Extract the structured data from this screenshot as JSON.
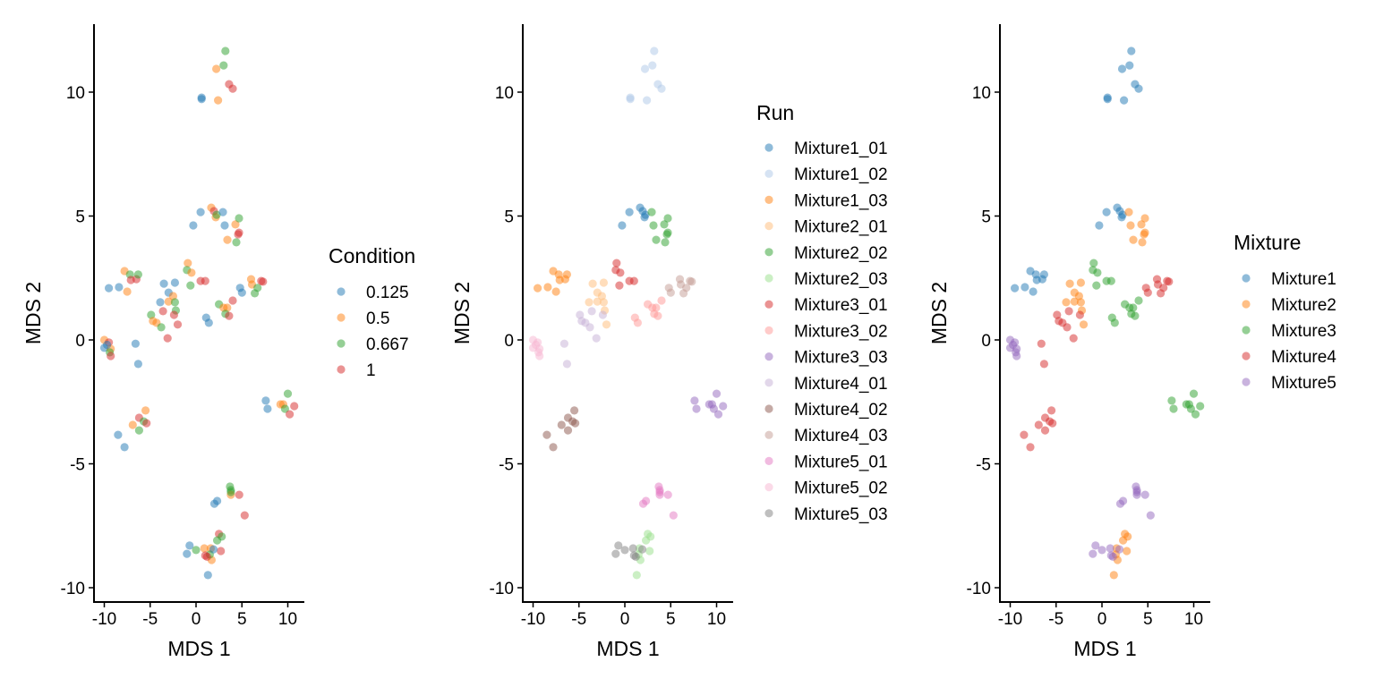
{
  "chart_data": [
    {
      "type": "scatter",
      "title": "",
      "xlabel": "MDS 1",
      "ylabel": "MDS 2",
      "xlim": [
        -11.2,
        11.8
      ],
      "ylim": [
        -10.6,
        12.75
      ],
      "xticks": [
        -10,
        -5,
        0,
        5,
        10
      ],
      "yticks": [
        -10,
        -5,
        0,
        5,
        10
      ],
      "grid": false,
      "color_by": "condition",
      "legend": {
        "title": "Condition",
        "position": "right",
        "entries": [
          {
            "label": "0.125",
            "key": "0.125",
            "color": "#1F77B4"
          },
          {
            "label": "0.5",
            "key": "0.5",
            "color": "#FF7F0E"
          },
          {
            "label": "0.667",
            "key": "0.667",
            "color": "#2CA02C"
          },
          {
            "label": "1",
            "key": "1",
            "color": "#D62728"
          }
        ]
      }
    },
    {
      "type": "scatter",
      "title": "",
      "xlabel": "MDS 1",
      "ylabel": "MDS 2",
      "xlim": [
        -11.2,
        11.8
      ],
      "ylim": [
        -10.6,
        12.75
      ],
      "xticks": [
        -10,
        -5,
        0,
        5,
        10
      ],
      "yticks": [
        -10,
        -5,
        0,
        5,
        10
      ],
      "grid": false,
      "color_by": "run",
      "legend": {
        "title": "Run",
        "position": "right",
        "entries": [
          {
            "label": "Mixture1_01",
            "key": "Mixture1_01",
            "color": "#1F77B4"
          },
          {
            "label": "Mixture1_02",
            "key": "Mixture1_02",
            "color": "#AEC7E8"
          },
          {
            "label": "Mixture1_03",
            "key": "Mixture1_03",
            "color": "#FF7F0E"
          },
          {
            "label": "Mixture2_01",
            "key": "Mixture2_01",
            "color": "#FFBB78"
          },
          {
            "label": "Mixture2_02",
            "key": "Mixture2_02",
            "color": "#2CA02C"
          },
          {
            "label": "Mixture2_03",
            "key": "Mixture2_03",
            "color": "#98DF8A"
          },
          {
            "label": "Mixture3_01",
            "key": "Mixture3_01",
            "color": "#D62728"
          },
          {
            "label": "Mixture3_02",
            "key": "Mixture3_02",
            "color": "#FF9896"
          },
          {
            "label": "Mixture3_03",
            "key": "Mixture3_03",
            "color": "#9467BD"
          },
          {
            "label": "Mixture4_01",
            "key": "Mixture4_01",
            "color": "#C5B0D5"
          },
          {
            "label": "Mixture4_02",
            "key": "Mixture4_02",
            "color": "#8C564B"
          },
          {
            "label": "Mixture4_03",
            "key": "Mixture4_03",
            "color": "#C49C94"
          },
          {
            "label": "Mixture5_01",
            "key": "Mixture5_01",
            "color": "#E377C2"
          },
          {
            "label": "Mixture5_02",
            "key": "Mixture5_02",
            "color": "#F7B6D2"
          },
          {
            "label": "Mixture5_03",
            "key": "Mixture5_03",
            "color": "#7F7F7F"
          }
        ]
      }
    },
    {
      "type": "scatter",
      "title": "",
      "xlabel": "MDS 1",
      "ylabel": "MDS 2",
      "xlim": [
        -11.2,
        11.8
      ],
      "ylim": [
        -10.6,
        12.75
      ],
      "xticks": [
        -10,
        -5,
        0,
        5,
        10
      ],
      "yticks": [
        -10,
        -5,
        0,
        5,
        10
      ],
      "grid": false,
      "color_by": "mixture",
      "legend": {
        "title": "Mixture",
        "position": "right",
        "entries": [
          {
            "label": "Mixture1",
            "key": "Mixture1",
            "color": "#1F77B4"
          },
          {
            "label": "Mixture2",
            "key": "Mixture2",
            "color": "#FF7F0E"
          },
          {
            "label": "Mixture3",
            "key": "Mixture3",
            "color": "#2CA02C"
          },
          {
            "label": "Mixture4",
            "key": "Mixture4",
            "color": "#D62728"
          },
          {
            "label": "Mixture5",
            "key": "Mixture5",
            "color": "#9467BD"
          }
        ]
      }
    }
  ],
  "points": [
    {
      "x": 3.2,
      "y": 11.66,
      "condition": "0.667",
      "run": "Mixture1_02",
      "mixture": "Mixture1"
    },
    {
      "x": 3.0,
      "y": 11.08,
      "condition": "0.667",
      "run": "Mixture1_02",
      "mixture": "Mixture1"
    },
    {
      "x": 2.2,
      "y": 10.94,
      "condition": "0.5",
      "run": "Mixture1_02",
      "mixture": "Mixture1"
    },
    {
      "x": 3.6,
      "y": 10.32,
      "condition": "1",
      "run": "Mixture1_02",
      "mixture": "Mixture1"
    },
    {
      "x": 4.0,
      "y": 10.14,
      "condition": "1",
      "run": "Mixture1_02",
      "mixture": "Mixture1"
    },
    {
      "x": 0.6,
      "y": 9.78,
      "condition": "0.125",
      "run": "Mixture1_02",
      "mixture": "Mixture1"
    },
    {
      "x": 0.6,
      "y": 9.72,
      "condition": "0.125",
      "run": "Mixture1_02",
      "mixture": "Mixture1"
    },
    {
      "x": 2.4,
      "y": 9.67,
      "condition": "0.5",
      "run": "Mixture1_02",
      "mixture": "Mixture1"
    },
    {
      "x": 0.5,
      "y": 5.16,
      "condition": "0.125",
      "run": "Mixture1_01",
      "mixture": "Mixture1"
    },
    {
      "x": -0.3,
      "y": 4.62,
      "condition": "0.125",
      "run": "Mixture1_01",
      "mixture": "Mixture1"
    },
    {
      "x": 1.66,
      "y": 5.34,
      "condition": "0.5",
      "run": "Mixture1_01",
      "mixture": "Mixture1"
    },
    {
      "x": 1.95,
      "y": 5.2,
      "condition": "1",
      "run": "Mixture1_01",
      "mixture": "Mixture1"
    },
    {
      "x": 2.15,
      "y": 4.95,
      "condition": "0.5",
      "run": "Mixture1_01",
      "mixture": "Mixture1"
    },
    {
      "x": 2.24,
      "y": 5.05,
      "condition": "0.667",
      "run": "Mixture1_01",
      "mixture": "Mixture1"
    },
    {
      "x": 2.93,
      "y": 5.16,
      "condition": "0.125",
      "run": "Mixture2_02",
      "mixture": "Mixture2"
    },
    {
      "x": 3.12,
      "y": 4.62,
      "condition": "0.125",
      "run": "Mixture2_02",
      "mixture": "Mixture2"
    },
    {
      "x": 4.29,
      "y": 4.66,
      "condition": "0.5",
      "run": "Mixture2_02",
      "mixture": "Mixture2"
    },
    {
      "x": 4.68,
      "y": 4.91,
      "condition": "0.667",
      "run": "Mixture2_02",
      "mixture": "Mixture2"
    },
    {
      "x": 4.68,
      "y": 4.33,
      "condition": "1",
      "run": "Mixture2_02",
      "mixture": "Mixture2"
    },
    {
      "x": 4.59,
      "y": 4.26,
      "condition": "1",
      "run": "Mixture2_02",
      "mixture": "Mixture2"
    },
    {
      "x": 3.41,
      "y": 4.04,
      "condition": "0.5",
      "run": "Mixture2_02",
      "mixture": "Mixture2"
    },
    {
      "x": 4.39,
      "y": 3.94,
      "condition": "0.667",
      "run": "Mixture2_02",
      "mixture": "Mixture2"
    },
    {
      "x": -7.8,
      "y": 2.78,
      "condition": "0.5",
      "run": "Mixture1_03",
      "mixture": "Mixture1"
    },
    {
      "x": -7.2,
      "y": 2.64,
      "condition": "0.667",
      "run": "Mixture1_03",
      "mixture": "Mixture1"
    },
    {
      "x": -7.1,
      "y": 2.42,
      "condition": "1",
      "run": "Mixture1_03",
      "mixture": "Mixture1"
    },
    {
      "x": -6.5,
      "y": 2.45,
      "condition": "1",
      "run": "Mixture1_03",
      "mixture": "Mixture1"
    },
    {
      "x": -6.3,
      "y": 2.64,
      "condition": "0.667",
      "run": "Mixture1_03",
      "mixture": "Mixture1"
    },
    {
      "x": -9.5,
      "y": 2.09,
      "condition": "0.125",
      "run": "Mixture1_03",
      "mixture": "Mixture1"
    },
    {
      "x": -8.4,
      "y": 2.13,
      "condition": "0.125",
      "run": "Mixture1_03",
      "mixture": "Mixture1"
    },
    {
      "x": -7.5,
      "y": 1.95,
      "condition": "0.5",
      "run": "Mixture1_03",
      "mixture": "Mixture1"
    },
    {
      "x": -3.5,
      "y": 2.27,
      "condition": "0.125",
      "run": "Mixture2_01",
      "mixture": "Mixture2"
    },
    {
      "x": -2.3,
      "y": 2.31,
      "condition": "0.125",
      "run": "Mixture2_01",
      "mixture": "Mixture2"
    },
    {
      "x": -3.0,
      "y": 1.91,
      "condition": "0.125",
      "run": "Mixture2_01",
      "mixture": "Mixture2"
    },
    {
      "x": -3.9,
      "y": 1.52,
      "condition": "0.125",
      "run": "Mixture2_01",
      "mixture": "Mixture2"
    },
    {
      "x": -3.0,
      "y": 1.55,
      "condition": "0.5",
      "run": "Mixture2_01",
      "mixture": "Mixture2"
    },
    {
      "x": -2.5,
      "y": 1.77,
      "condition": "0.5",
      "run": "Mixture2_01",
      "mixture": "Mixture2"
    },
    {
      "x": -2.3,
      "y": 1.52,
      "condition": "0.667",
      "run": "Mixture2_01",
      "mixture": "Mixture2"
    },
    {
      "x": -2.2,
      "y": 1.19,
      "condition": "0.667",
      "run": "Mixture2_01",
      "mixture": "Mixture2"
    },
    {
      "x": -2.0,
      "y": 0.62,
      "condition": "1",
      "run": "Mixture2_01",
      "mixture": "Mixture2"
    },
    {
      "x": -3.6,
      "y": 1.16,
      "condition": "1",
      "run": "Mixture4_01",
      "mixture": "Mixture4"
    },
    {
      "x": -2.4,
      "y": 1.01,
      "condition": "1",
      "run": "Mixture4_01",
      "mixture": "Mixture4"
    },
    {
      "x": -4.9,
      "y": 1.01,
      "condition": "0.667",
      "run": "Mixture4_01",
      "mixture": "Mixture4"
    },
    {
      "x": -4.7,
      "y": 0.76,
      "condition": "0.5",
      "run": "Mixture4_01",
      "mixture": "Mixture4"
    },
    {
      "x": -4.3,
      "y": 0.69,
      "condition": "0.5",
      "run": "Mixture4_01",
      "mixture": "Mixture4"
    },
    {
      "x": -3.8,
      "y": 0.51,
      "condition": "0.667",
      "run": "Mixture4_01",
      "mixture": "Mixture4"
    },
    {
      "x": -3.1,
      "y": 0.07,
      "condition": "1",
      "run": "Mixture4_01",
      "mixture": "Mixture4"
    },
    {
      "x": -6.6,
      "y": -0.15,
      "condition": "0.125",
      "run": "Mixture4_01",
      "mixture": "Mixture4"
    },
    {
      "x": -6.3,
      "y": -0.97,
      "condition": "0.125",
      "run": "Mixture4_01",
      "mixture": "Mixture4"
    },
    {
      "x": -10.0,
      "y": 0.0,
      "condition": "0.5",
      "run": "Mixture5_02",
      "mixture": "Mixture5"
    },
    {
      "x": -9.5,
      "y": -0.1,
      "condition": "1",
      "run": "Mixture5_02",
      "mixture": "Mixture5"
    },
    {
      "x": -10.0,
      "y": -0.32,
      "condition": "0.125",
      "run": "Mixture5_02",
      "mixture": "Mixture5"
    },
    {
      "x": -9.3,
      "y": -0.36,
      "condition": "0.5",
      "run": "Mixture5_02",
      "mixture": "Mixture5"
    },
    {
      "x": -9.4,
      "y": -0.5,
      "condition": "0.667",
      "run": "Mixture5_02",
      "mixture": "Mixture5"
    },
    {
      "x": -9.3,
      "y": -0.65,
      "condition": "1",
      "run": "Mixture5_02",
      "mixture": "Mixture5"
    },
    {
      "x": -9.7,
      "y": -0.2,
      "condition": "0.125",
      "run": "Mixture5_02",
      "mixture": "Mixture5"
    },
    {
      "x": -0.9,
      "y": 3.1,
      "condition": "0.5",
      "run": "Mixture3_01",
      "mixture": "Mixture3"
    },
    {
      "x": -1.0,
      "y": 2.82,
      "condition": "0.667",
      "run": "Mixture3_01",
      "mixture": "Mixture3"
    },
    {
      "x": -0.5,
      "y": 2.71,
      "condition": "0.5",
      "run": "Mixture3_01",
      "mixture": "Mixture3"
    },
    {
      "x": -0.6,
      "y": 2.2,
      "condition": "0.667",
      "run": "Mixture3_01",
      "mixture": "Mixture3"
    },
    {
      "x": 0.5,
      "y": 2.38,
      "condition": "1",
      "run": "Mixture3_01",
      "mixture": "Mixture3"
    },
    {
      "x": 1.0,
      "y": 2.38,
      "condition": "1",
      "run": "Mixture3_01",
      "mixture": "Mixture3"
    },
    {
      "x": 6.0,
      "y": 2.45,
      "condition": "0.5",
      "run": "Mixture4_03",
      "mixture": "Mixture4"
    },
    {
      "x": 6.1,
      "y": 2.24,
      "condition": "0.5",
      "run": "Mixture4_03",
      "mixture": "Mixture4"
    },
    {
      "x": 7.1,
      "y": 2.38,
      "condition": "1",
      "run": "Mixture4_03",
      "mixture": "Mixture4"
    },
    {
      "x": 7.3,
      "y": 2.35,
      "condition": "1",
      "run": "Mixture4_03",
      "mixture": "Mixture4"
    },
    {
      "x": 6.7,
      "y": 2.1,
      "condition": "0.667",
      "run": "Mixture4_03",
      "mixture": "Mixture4"
    },
    {
      "x": 6.4,
      "y": 1.88,
      "condition": "0.667",
      "run": "Mixture4_03",
      "mixture": "Mixture4"
    },
    {
      "x": 4.8,
      "y": 2.1,
      "condition": "0.125",
      "run": "Mixture4_03",
      "mixture": "Mixture4"
    },
    {
      "x": 5.0,
      "y": 1.91,
      "condition": "0.125",
      "run": "Mixture4_03",
      "mixture": "Mixture4"
    },
    {
      "x": 4.0,
      "y": 1.59,
      "condition": "1",
      "run": "Mixture3_02",
      "mixture": "Mixture3"
    },
    {
      "x": 2.5,
      "y": 1.44,
      "condition": "0.667",
      "run": "Mixture3_02",
      "mixture": "Mixture3"
    },
    {
      "x": 3.0,
      "y": 1.3,
      "condition": "0.5",
      "run": "Mixture3_02",
      "mixture": "Mixture3"
    },
    {
      "x": 3.4,
      "y": 1.3,
      "condition": "0.5",
      "run": "Mixture3_02",
      "mixture": "Mixture3"
    },
    {
      "x": 3.2,
      "y": 1.05,
      "condition": "0.667",
      "run": "Mixture3_02",
      "mixture": "Mixture3"
    },
    {
      "x": 3.6,
      "y": 0.97,
      "condition": "1",
      "run": "Mixture3_02",
      "mixture": "Mixture3"
    },
    {
      "x": 1.1,
      "y": 0.9,
      "condition": "0.125",
      "run": "Mixture3_02",
      "mixture": "Mixture3"
    },
    {
      "x": 1.4,
      "y": 0.69,
      "condition": "0.125",
      "run": "Mixture3_02",
      "mixture": "Mixture3"
    },
    {
      "x": 7.6,
      "y": -2.45,
      "condition": "0.125",
      "run": "Mixture3_03",
      "mixture": "Mixture3"
    },
    {
      "x": 7.8,
      "y": -2.78,
      "condition": "0.125",
      "run": "Mixture3_03",
      "mixture": "Mixture3"
    },
    {
      "x": 10.0,
      "y": -2.17,
      "condition": "0.667",
      "run": "Mixture3_03",
      "mixture": "Mixture3"
    },
    {
      "x": 9.2,
      "y": -2.6,
      "condition": "0.5",
      "run": "Mixture3_03",
      "mixture": "Mixture3"
    },
    {
      "x": 9.5,
      "y": -2.6,
      "condition": "0.5",
      "run": "Mixture3_03",
      "mixture": "Mixture3"
    },
    {
      "x": 9.7,
      "y": -2.78,
      "condition": "0.667",
      "run": "Mixture3_03",
      "mixture": "Mixture3"
    },
    {
      "x": 10.7,
      "y": -2.67,
      "condition": "1",
      "run": "Mixture3_03",
      "mixture": "Mixture3"
    },
    {
      "x": 10.2,
      "y": -3.0,
      "condition": "1",
      "run": "Mixture3_03",
      "mixture": "Mixture3"
    },
    {
      "x": -5.5,
      "y": -2.85,
      "condition": "0.5",
      "run": "Mixture4_02",
      "mixture": "Mixture4"
    },
    {
      "x": -6.2,
      "y": -3.14,
      "condition": "1",
      "run": "Mixture4_02",
      "mixture": "Mixture4"
    },
    {
      "x": -5.7,
      "y": -3.29,
      "condition": "0.667",
      "run": "Mixture4_02",
      "mixture": "Mixture4"
    },
    {
      "x": -5.4,
      "y": -3.36,
      "condition": "1",
      "run": "Mixture4_02",
      "mixture": "Mixture4"
    },
    {
      "x": -6.9,
      "y": -3.43,
      "condition": "0.5",
      "run": "Mixture4_02",
      "mixture": "Mixture4"
    },
    {
      "x": -6.2,
      "y": -3.65,
      "condition": "0.667",
      "run": "Mixture4_02",
      "mixture": "Mixture4"
    },
    {
      "x": -8.5,
      "y": -3.83,
      "condition": "0.125",
      "run": "Mixture4_02",
      "mixture": "Mixture4"
    },
    {
      "x": -7.8,
      "y": -4.33,
      "condition": "0.125",
      "run": "Mixture4_02",
      "mixture": "Mixture4"
    },
    {
      "x": 3.7,
      "y": -5.92,
      "condition": "0.667",
      "run": "Mixture5_01",
      "mixture": "Mixture5"
    },
    {
      "x": 3.8,
      "y": -6.06,
      "condition": "0.667",
      "run": "Mixture5_01",
      "mixture": "Mixture5"
    },
    {
      "x": 3.8,
      "y": -6.25,
      "condition": "0.5",
      "run": "Mixture5_01",
      "mixture": "Mixture5"
    },
    {
      "x": 3.8,
      "y": -6.14,
      "condition": "0.667",
      "run": "Mixture5_01",
      "mixture": "Mixture5"
    },
    {
      "x": 4.7,
      "y": -6.25,
      "condition": "1",
      "run": "Mixture5_01",
      "mixture": "Mixture5"
    },
    {
      "x": 2.0,
      "y": -6.61,
      "condition": "0.125",
      "run": "Mixture5_01",
      "mixture": "Mixture5"
    },
    {
      "x": 2.3,
      "y": -6.5,
      "condition": "0.125",
      "run": "Mixture5_01",
      "mixture": "Mixture5"
    },
    {
      "x": 5.3,
      "y": -7.08,
      "condition": "1",
      "run": "Mixture5_01",
      "mixture": "Mixture5"
    },
    {
      "x": 2.5,
      "y": -7.83,
      "condition": "1",
      "run": "Mixture2_03",
      "mixture": "Mixture2"
    },
    {
      "x": 2.8,
      "y": -7.94,
      "condition": "0.667",
      "run": "Mixture2_03",
      "mixture": "Mixture2"
    },
    {
      "x": 2.3,
      "y": -8.09,
      "condition": "0.667",
      "run": "Mixture2_03",
      "mixture": "Mixture2"
    },
    {
      "x": 2.7,
      "y": -8.52,
      "condition": "1",
      "run": "Mixture2_03",
      "mixture": "Mixture2"
    },
    {
      "x": 1.6,
      "y": -8.41,
      "condition": "0.5",
      "run": "Mixture2_03",
      "mixture": "Mixture2"
    },
    {
      "x": 1.7,
      "y": -8.88,
      "condition": "0.5",
      "run": "Mixture2_03",
      "mixture": "Mixture2"
    },
    {
      "x": 1.5,
      "y": -8.66,
      "condition": "0.667",
      "run": "Mixture2_03",
      "mixture": "Mixture2"
    },
    {
      "x": 1.3,
      "y": -9.49,
      "condition": "0.125",
      "run": "Mixture2_03",
      "mixture": "Mixture2"
    },
    {
      "x": -0.7,
      "y": -8.3,
      "condition": "0.125",
      "run": "Mixture5_03",
      "mixture": "Mixture5"
    },
    {
      "x": -1.0,
      "y": -8.63,
      "condition": "0.125",
      "run": "Mixture5_03",
      "mixture": "Mixture5"
    },
    {
      "x": 0.0,
      "y": -8.48,
      "condition": "0.667",
      "run": "Mixture5_03",
      "mixture": "Mixture5"
    },
    {
      "x": 0.9,
      "y": -8.41,
      "condition": "0.5",
      "run": "Mixture5_03",
      "mixture": "Mixture5"
    },
    {
      "x": 1.9,
      "y": -8.45,
      "condition": "0.125",
      "run": "Mixture5_03",
      "mixture": "Mixture5"
    },
    {
      "x": 1.0,
      "y": -8.7,
      "condition": "1",
      "run": "Mixture5_03",
      "mixture": "Mixture5"
    },
    {
      "x": 1.2,
      "y": -8.75,
      "condition": "1",
      "run": "Mixture5_03",
      "mixture": "Mixture5"
    }
  ]
}
